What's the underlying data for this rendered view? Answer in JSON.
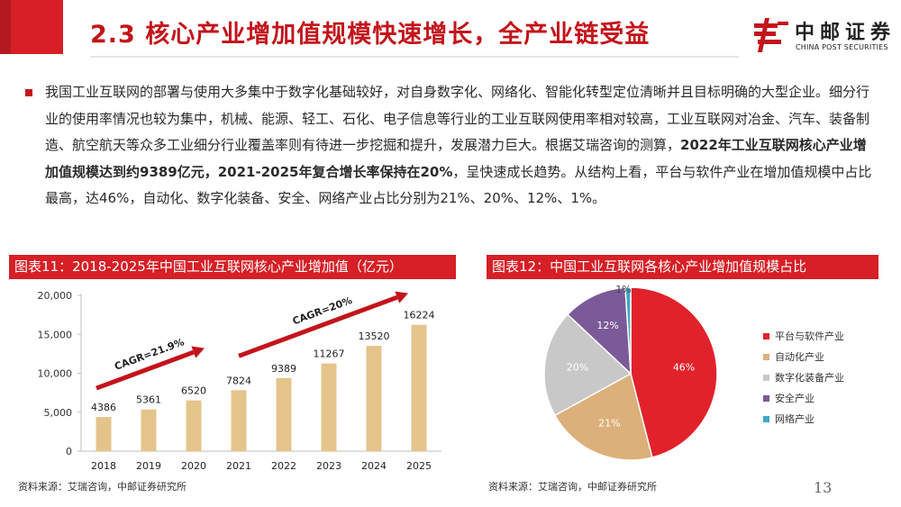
{
  "header": {
    "title": "2.3 核心产业增加值规模快速增长，全产业链受益",
    "logo_cn": "中邮证券",
    "logo_en": "CHINA POST SECURITIES"
  },
  "body": {
    "p1": "我国工业互联网的部署与使用大多集中于数字化基础较好，对自身数字化、网络化、智能化转型定位清晰并且目标明确的大型企业。细分行业的使用率情况也较为集中，机械、能源、轻工、石化、电子信息等行业的工业互联网使用率相对较高，工业互联网对冶金、汽车、装备制造、航空航天等众多工业细分行业覆盖率则有待进一步挖掘和提升，发展潜力巨大。根据艾瑞咨询的测算，",
    "bold": "2022年工业互联网核心产业增加值规模达到约9389亿元，2021-2025年复合增长率保持在20%",
    "p2": "，呈快速成长趋势。从结构上看，平台与软件产业在增加值规模中占比最高，达46%，自动化、数字化装备、安全、网络产业占比分别为21%、20%、12%、1%。"
  },
  "chart1": {
    "header": "图表11：2018-2025年中国工业互联网核心产业增加值（亿元）",
    "source": "资料来源：艾瑞咨询，中邮证券研究所"
  },
  "chart2": {
    "header": "图表12：中国工业互联网各核心产业增加值规模占比",
    "source": "资料来源：艾瑞咨询，中邮证券研究所"
  },
  "page_number": "13",
  "colors": {
    "brand_red": "#d61f26",
    "bar": "#e5c48c",
    "arrow": "#c3141b"
  },
  "chart_data": [
    {
      "type": "bar",
      "categories": [
        "2018",
        "2019",
        "2020",
        "2021",
        "2022",
        "2023",
        "2024",
        "2025"
      ],
      "values": [
        4386,
        5361,
        6520,
        7824,
        9389,
        11267,
        13520,
        16224
      ],
      "data_labels": [
        "4386",
        "5361",
        "6520",
        "7824",
        "9389",
        "11267",
        "13520",
        "16224"
      ],
      "ylim": [
        0,
        20000
      ],
      "y_ticks": [
        0,
        5000,
        10000,
        15000,
        20000
      ],
      "y_tick_labels": [
        "0",
        "5,000",
        "10,000",
        "15,000",
        "20,000"
      ],
      "annotations": [
        "CAGR=21.9%",
        "CAGR=20%"
      ],
      "grid": false
    },
    {
      "type": "pie",
      "labels": [
        "平台与软件产业",
        "自动化产业",
        "数字化装备产业",
        "安全产业",
        "网络产业"
      ],
      "values": [
        46,
        21,
        20,
        12,
        1
      ],
      "value_labels": [
        "46%",
        "21%",
        "20%",
        "12%",
        "1%"
      ],
      "colors": [
        "#e1222b",
        "#dcb07a",
        "#c8c8c8",
        "#7b5a97",
        "#3fa7c6"
      ],
      "legend_position": "right"
    }
  ]
}
